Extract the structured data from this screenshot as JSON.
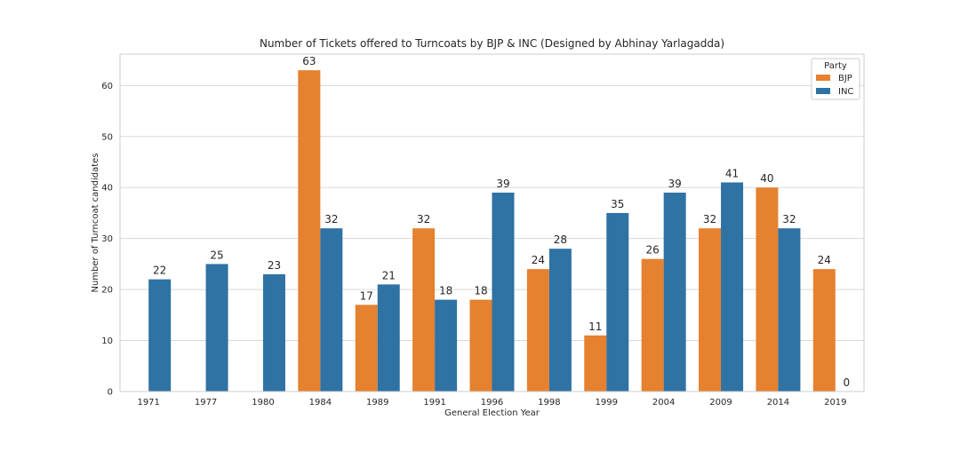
{
  "chart_data": {
    "type": "bar",
    "title": "Number of Tickets offered to Turncoats by BJP & INC  (Designed by Abhinay Yarlagadda)",
    "xlabel": "General Election Year",
    "ylabel": "Number of Turncoat candidates",
    "categories": [
      "1971",
      "1977",
      "1980",
      "1984",
      "1989",
      "1991",
      "1996",
      "1998",
      "1999",
      "2004",
      "2009",
      "2014",
      "2019"
    ],
    "series": [
      {
        "name": "BJP",
        "color": "#e6812f",
        "values": [
          null,
          null,
          null,
          63,
          17,
          32,
          18,
          24,
          11,
          26,
          32,
          40,
          24
        ]
      },
      {
        "name": "INC",
        "color": "#2f72a4",
        "values": [
          22,
          25,
          23,
          32,
          21,
          18,
          39,
          28,
          35,
          39,
          41,
          32,
          0
        ]
      }
    ],
    "ylim": [
      0,
      66.15
    ],
    "yticks": [
      0,
      10,
      20,
      30,
      40,
      50,
      60
    ],
    "grid": true,
    "legend": {
      "title": "Party",
      "placement": "top-right"
    }
  }
}
